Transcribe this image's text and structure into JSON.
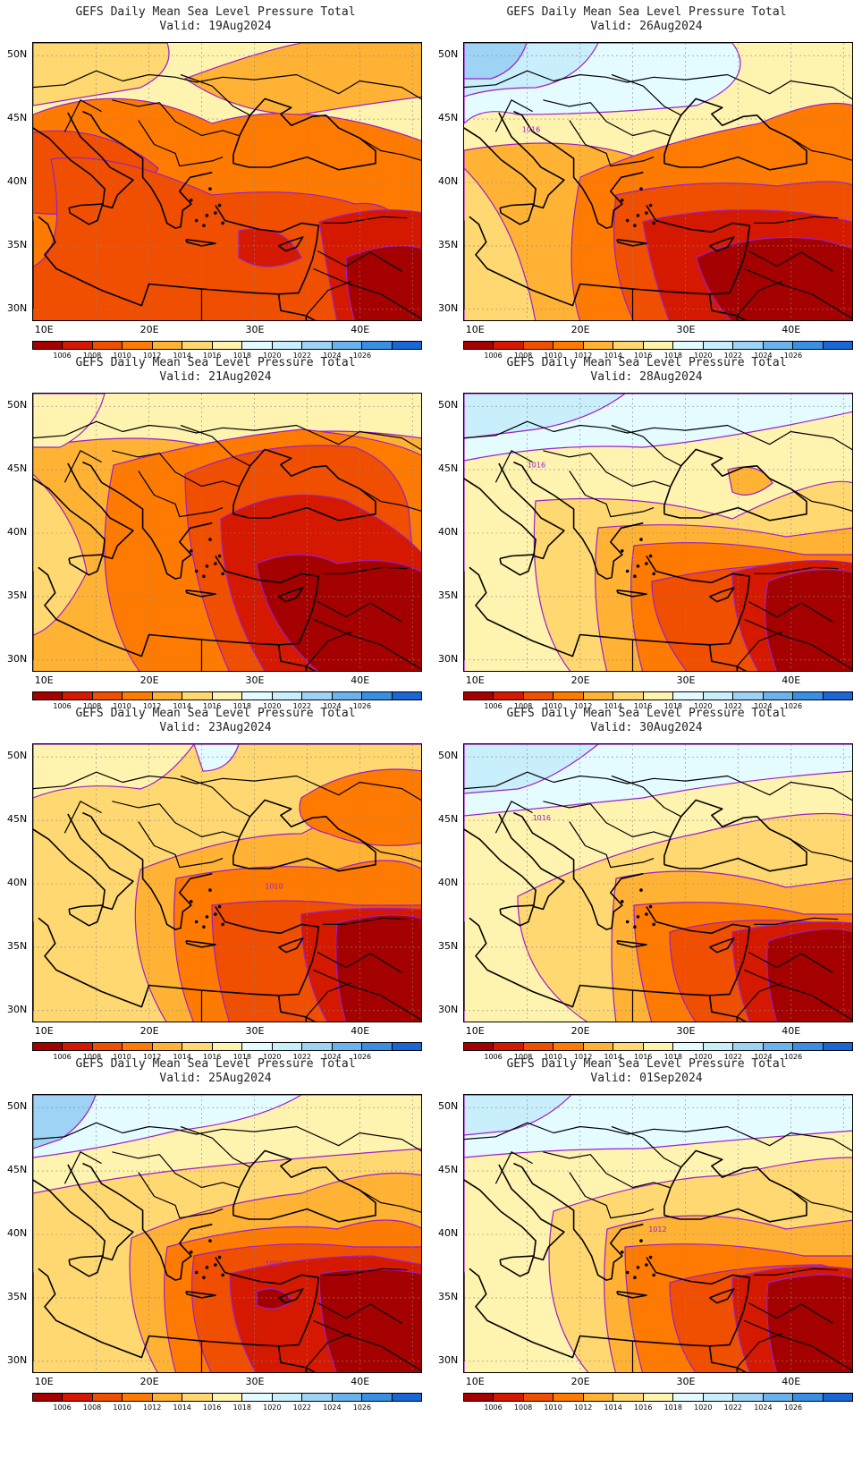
{
  "title_line": "GEFS Daily Mean Sea Level Pressure Total",
  "y_ticks": [
    "50N",
    "45N",
    "40N",
    "35N",
    "30N"
  ],
  "x_ticks": [
    "10E",
    "20E",
    "30E",
    "40E"
  ],
  "colorbar": {
    "colors": [
      "#a50000",
      "#d51800",
      "#f04e00",
      "#ff7a00",
      "#ffb234",
      "#ffd872",
      "#fff3b0",
      "#e4fbff",
      "#c9eefc",
      "#9ed3f5",
      "#6cb3ed",
      "#3a8fe3",
      "#1a66d4"
    ],
    "labels": [
      "1006",
      "1008",
      "1010",
      "1012",
      "1014",
      "1016",
      "1018",
      "1020",
      "1022",
      "1024",
      "1026"
    ]
  },
  "panels": [
    {
      "valid": "Valid: 19Aug2024",
      "contour_label": ""
    },
    {
      "valid": "Valid: 26Aug2024",
      "contour_label": "1016"
    },
    {
      "valid": "Valid: 21Aug2024",
      "contour_label": ""
    },
    {
      "valid": "Valid: 28Aug2024",
      "contour_label": "1016"
    },
    {
      "valid": "Valid: 23Aug2024",
      "contour_label": "1010"
    },
    {
      "valid": "Valid: 30Aug2024",
      "contour_label": "1016"
    },
    {
      "valid": "Valid: 25Aug2024",
      "contour_label": "1008"
    },
    {
      "valid": "Valid: 01Sep2024",
      "contour_label": "1012"
    }
  ]
}
